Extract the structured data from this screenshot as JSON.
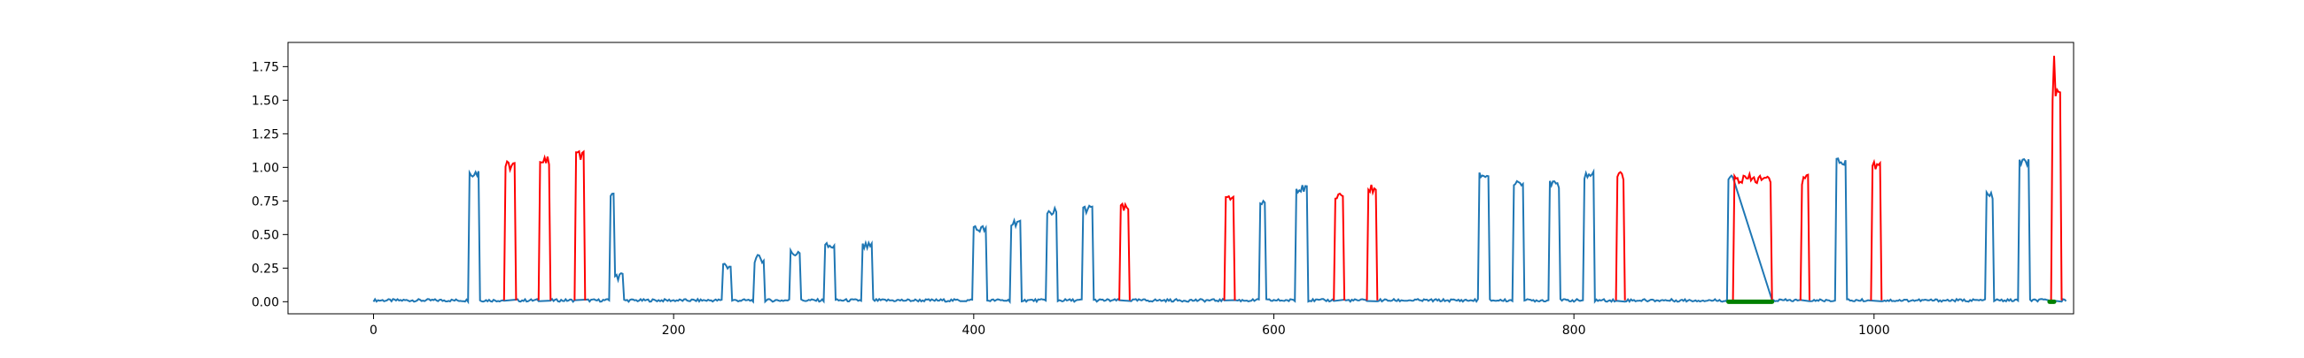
{
  "chart_data": {
    "type": "line",
    "title": "",
    "xlabel": "",
    "ylabel": "",
    "xlim": [
      -57,
      1133
    ],
    "ylim": [
      -0.09,
      1.93
    ],
    "x_ticks": [
      0,
      200,
      400,
      600,
      800,
      1000
    ],
    "x_tick_labels": [
      "0",
      "200",
      "400",
      "600",
      "800",
      "1000"
    ],
    "y_ticks": [
      0.0,
      0.25,
      0.5,
      0.75,
      1.0,
      1.25,
      1.5,
      1.75
    ],
    "y_tick_labels": [
      "0.00",
      "0.25",
      "0.50",
      "0.75",
      "1.00",
      "1.25",
      "1.50",
      "1.75"
    ],
    "grid": false,
    "colors": {
      "base": "#1f77b4",
      "highlight": "#ff0000",
      "marker": "#008000"
    },
    "baseline_level": 0.01,
    "series": [
      {
        "style": "base",
        "pulses": [
          {
            "start": 64,
            "end": 70,
            "level": 0.97
          },
          {
            "start": 158,
            "end": 160,
            "level": 0.8
          },
          {
            "start": 160,
            "end": 166,
            "level": 0.2
          },
          {
            "start": 233,
            "end": 238,
            "level": 0.28
          },
          {
            "start": 254,
            "end": 260,
            "level": 0.33
          },
          {
            "start": 278,
            "end": 284,
            "level": 0.37
          },
          {
            "start": 301,
            "end": 307,
            "level": 0.42
          },
          {
            "start": 326,
            "end": 332,
            "level": 0.42
          },
          {
            "start": 400,
            "end": 408,
            "level": 0.55
          },
          {
            "start": 425,
            "end": 431,
            "level": 0.6
          },
          {
            "start": 449,
            "end": 455,
            "level": 0.68
          },
          {
            "start": 473,
            "end": 479,
            "level": 0.7
          },
          {
            "start": 591,
            "end": 594,
            "level": 0.75
          },
          {
            "start": 615,
            "end": 622,
            "level": 0.85
          },
          {
            "start": 737,
            "end": 743,
            "level": 0.95
          },
          {
            "start": 760,
            "end": 766,
            "level": 0.88
          },
          {
            "start": 784,
            "end": 790,
            "level": 0.88
          },
          {
            "start": 807,
            "end": 813,
            "level": 0.95
          },
          {
            "start": 903,
            "end": 906,
            "level": 0.93
          },
          {
            "start": 975,
            "end": 981,
            "level": 1.05
          },
          {
            "start": 1075,
            "end": 1079,
            "level": 0.8
          },
          {
            "start": 1097,
            "end": 1103,
            "level": 1.05
          }
        ]
      },
      {
        "style": "highlight",
        "pulses": [
          {
            "start": 87,
            "end": 95,
            "level": 1.02
          },
          {
            "start": 110,
            "end": 118,
            "level": 1.05
          },
          {
            "start": 134,
            "end": 141,
            "level": 1.1
          },
          {
            "start": 497,
            "end": 504,
            "level": 0.7
          },
          {
            "start": 567,
            "end": 574,
            "level": 0.8
          },
          {
            "start": 640,
            "end": 647,
            "level": 0.78
          },
          {
            "start": 662,
            "end": 669,
            "level": 0.85
          },
          {
            "start": 828,
            "end": 834,
            "level": 0.95
          },
          {
            "start": 906,
            "end": 932,
            "level": 0.92
          },
          {
            "start": 951,
            "end": 957,
            "level": 0.92
          },
          {
            "start": 998,
            "end": 1005,
            "level": 1.02
          },
          {
            "start": 1118,
            "end": 1125,
            "level": 1.55
          }
        ]
      }
    ],
    "markers": [
      {
        "start": 903,
        "end": 932,
        "y": 0.0
      },
      {
        "start": 1117,
        "end": 1120,
        "y": 0.0
      }
    ],
    "x_max_point": 1128
  }
}
